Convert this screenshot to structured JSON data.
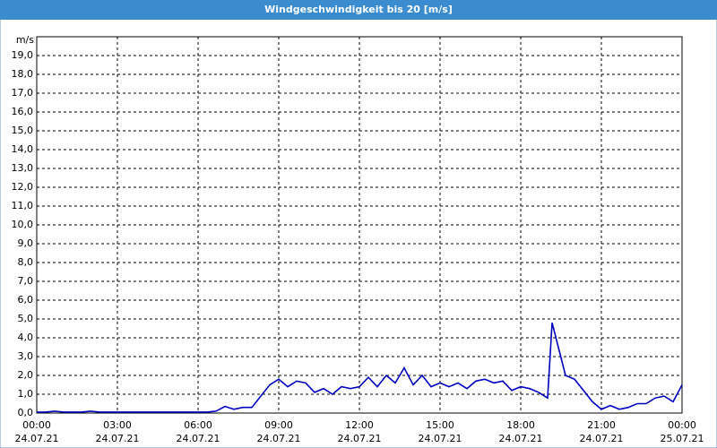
{
  "chart_data": {
    "type": "line",
    "title": "Windgeschwindigkeit bis 20 [m/s]",
    "y_unit": "m/s",
    "x": [
      "2021-07-24 00:00",
      "2021-07-24 00:20",
      "2021-07-24 00:40",
      "2021-07-24 01:00",
      "2021-07-24 01:20",
      "2021-07-24 01:40",
      "2021-07-24 02:00",
      "2021-07-24 02:20",
      "2021-07-24 02:40",
      "2021-07-24 03:00",
      "2021-07-24 03:20",
      "2021-07-24 03:40",
      "2021-07-24 04:00",
      "2021-07-24 04:20",
      "2021-07-24 04:40",
      "2021-07-24 05:00",
      "2021-07-24 05:20",
      "2021-07-24 05:40",
      "2021-07-24 06:00",
      "2021-07-24 06:20",
      "2021-07-24 06:40",
      "2021-07-24 07:00",
      "2021-07-24 07:20",
      "2021-07-24 07:40",
      "2021-07-24 08:00",
      "2021-07-24 08:20",
      "2021-07-24 08:40",
      "2021-07-24 09:00",
      "2021-07-24 09:20",
      "2021-07-24 09:40",
      "2021-07-24 10:00",
      "2021-07-24 10:20",
      "2021-07-24 10:40",
      "2021-07-24 11:00",
      "2021-07-24 11:20",
      "2021-07-24 11:40",
      "2021-07-24 12:00",
      "2021-07-24 12:20",
      "2021-07-24 12:40",
      "2021-07-24 13:00",
      "2021-07-24 13:20",
      "2021-07-24 13:40",
      "2021-07-24 14:00",
      "2021-07-24 14:20",
      "2021-07-24 14:40",
      "2021-07-24 15:00",
      "2021-07-24 15:20",
      "2021-07-24 15:40",
      "2021-07-24 16:00",
      "2021-07-24 16:20",
      "2021-07-24 16:40",
      "2021-07-24 17:00",
      "2021-07-24 17:20",
      "2021-07-24 17:40",
      "2021-07-24 18:00",
      "2021-07-24 18:20",
      "2021-07-24 18:40",
      "2021-07-24 19:00",
      "2021-07-24 19:10",
      "2021-07-24 19:40",
      "2021-07-24 20:00",
      "2021-07-24 20:20",
      "2021-07-24 20:40",
      "2021-07-24 21:00",
      "2021-07-24 21:20",
      "2021-07-24 21:40",
      "2021-07-24 22:00",
      "2021-07-24 22:20",
      "2021-07-24 22:40",
      "2021-07-24 23:00",
      "2021-07-24 23:20",
      "2021-07-24 23:40",
      "2021-07-25 00:00"
    ],
    "series": [
      {
        "color": "#0000c0",
        "values": [
          0.05,
          0.05,
          0.1,
          0.05,
          0.05,
          0.05,
          0.1,
          0.05,
          0.05,
          0.05,
          0.05,
          0.05,
          0.05,
          0.05,
          0.05,
          0.05,
          0.05,
          0.05,
          0.05,
          0.05,
          0.1,
          0.35,
          0.2,
          0.3,
          0.3,
          0.9,
          1.5,
          1.8,
          1.4,
          1.7,
          1.6,
          1.1,
          1.3,
          1.0,
          1.4,
          1.3,
          1.4,
          1.9,
          1.4,
          2.0,
          1.6,
          2.4,
          1.5,
          2.0,
          1.4,
          1.6,
          1.4,
          1.6,
          1.3,
          1.7,
          1.8,
          1.6,
          1.7,
          1.2,
          1.4,
          1.3,
          1.1,
          0.8,
          4.8,
          2.0,
          1.8,
          1.2,
          0.6,
          0.2,
          0.4,
          0.2,
          0.3,
          0.5,
          0.5,
          0.8,
          0.9,
          0.6,
          1.5
        ]
      }
    ],
    "xlim": [
      "2021-07-24 00:00",
      "2021-07-25 00:00"
    ],
    "xticks": [
      {
        "value": "2021-07-24 00:00",
        "label": [
          "00:00",
          "24.07.21"
        ]
      },
      {
        "value": "2021-07-24 03:00",
        "label": [
          "03:00",
          "24.07.21"
        ]
      },
      {
        "value": "2021-07-24 06:00",
        "label": [
          "06:00",
          "24.07.21"
        ]
      },
      {
        "value": "2021-07-24 09:00",
        "label": [
          "09:00",
          "24.07.21"
        ]
      },
      {
        "value": "2021-07-24 12:00",
        "label": [
          "12:00",
          "24.07.21"
        ]
      },
      {
        "value": "2021-07-24 15:00",
        "label": [
          "15:00",
          "24.07.21"
        ]
      },
      {
        "value": "2021-07-24 18:00",
        "label": [
          "18:00",
          "24.07.21"
        ]
      },
      {
        "value": "2021-07-24 21:00",
        "label": [
          "21:00",
          "24.07.21"
        ]
      },
      {
        "value": "2021-07-25 00:00",
        "label": [
          "00:00",
          "25.07.21"
        ]
      }
    ],
    "ylim": [
      0,
      20
    ],
    "yticks": [
      {
        "value": 0,
        "label": "0,0"
      },
      {
        "value": 1,
        "label": "1,0"
      },
      {
        "value": 2,
        "label": "2,0"
      },
      {
        "value": 3,
        "label": "3,0"
      },
      {
        "value": 4,
        "label": "4,0"
      },
      {
        "value": 5,
        "label": "5,0"
      },
      {
        "value": 6,
        "label": "6,0"
      },
      {
        "value": 7,
        "label": "7,0"
      },
      {
        "value": 8,
        "label": "8,0"
      },
      {
        "value": 9,
        "label": "9,0"
      },
      {
        "value": 10,
        "label": "10,0"
      },
      {
        "value": 11,
        "label": "11,0"
      },
      {
        "value": 12,
        "label": "12,0"
      },
      {
        "value": 13,
        "label": "13,0"
      },
      {
        "value": 14,
        "label": "14,0"
      },
      {
        "value": 15,
        "label": "15,0"
      },
      {
        "value": 16,
        "label": "16,0"
      },
      {
        "value": 17,
        "label": "17,0"
      },
      {
        "value": 18,
        "label": "18,0"
      },
      {
        "value": 19,
        "label": "19,0"
      }
    ],
    "grid": true
  }
}
